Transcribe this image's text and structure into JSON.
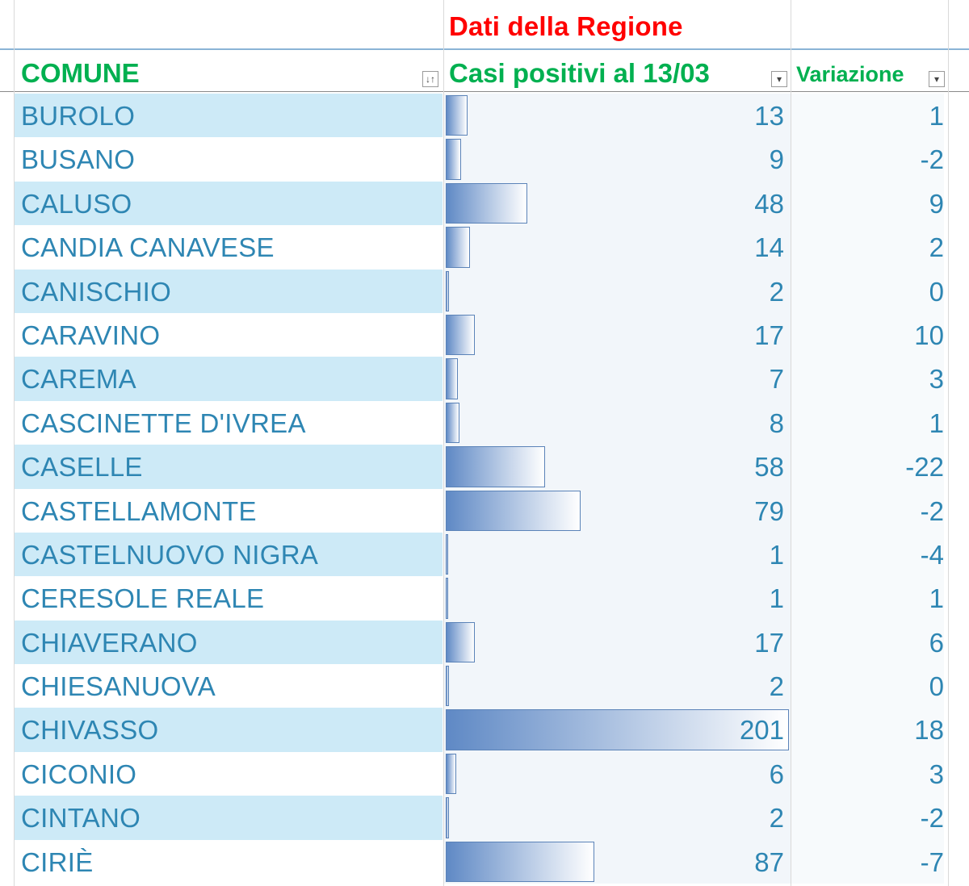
{
  "title": "Dati della Regione",
  "headers": {
    "comune": "COMUNE",
    "casi": "Casi positivi al 13/03",
    "variazione": "Variazione"
  },
  "colors": {
    "title": "#ff0000",
    "header": "#00b050",
    "text": "#2e86b3",
    "band": "#cdeaf7",
    "bar": "#5f89c5"
  },
  "databar_max": 201,
  "rows": [
    {
      "comune": "BUROLO",
      "casi": "13",
      "variazione": "1"
    },
    {
      "comune": "BUSANO",
      "casi": "9",
      "variazione": "-2"
    },
    {
      "comune": "CALUSO",
      "casi": "48",
      "variazione": "9"
    },
    {
      "comune": "CANDIA CANAVESE",
      "casi": "14",
      "variazione": "2"
    },
    {
      "comune": "CANISCHIO",
      "casi": "2",
      "variazione": "0"
    },
    {
      "comune": "CARAVINO",
      "casi": "17",
      "variazione": "10"
    },
    {
      "comune": "CAREMA",
      "casi": "7",
      "variazione": "3"
    },
    {
      "comune": "CASCINETTE D'IVREA",
      "casi": "8",
      "variazione": "1"
    },
    {
      "comune": "CASELLE",
      "casi": "58",
      "variazione": "-22"
    },
    {
      "comune": "CASTELLAMONTE",
      "casi": "79",
      "variazione": "-2"
    },
    {
      "comune": "CASTELNUOVO NIGRA",
      "casi": "1",
      "variazione": "-4"
    },
    {
      "comune": "CERESOLE REALE",
      "casi": "1",
      "variazione": "1"
    },
    {
      "comune": "CHIAVERANO",
      "casi": "17",
      "variazione": "6"
    },
    {
      "comune": "CHIESANUOVA",
      "casi": "2",
      "variazione": "0"
    },
    {
      "comune": "CHIVASSO",
      "casi": "201",
      "variazione": "18"
    },
    {
      "comune": "CICONIO",
      "casi": "6",
      "variazione": "3"
    },
    {
      "comune": "CINTANO",
      "casi": "2",
      "variazione": "-2"
    },
    {
      "comune": "CIRIÈ",
      "casi": "87",
      "variazione": "-7"
    }
  ]
}
